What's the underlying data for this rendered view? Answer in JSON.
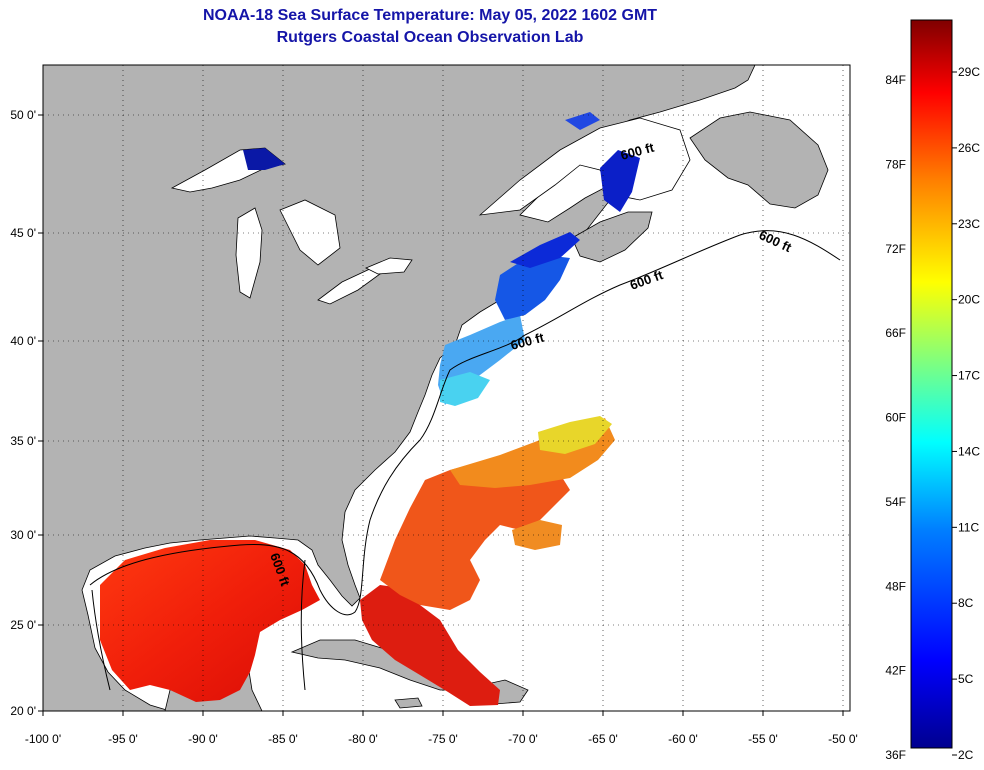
{
  "header": {
    "title": "NOAA-18 Sea Surface Temperature:  May 05, 2022 1602 GMT",
    "subtitle": "Rutgers Coastal Ocean Observation Lab"
  },
  "map": {
    "lon_ticks": [
      "-100 0'",
      "-95 0'",
      "-90 0'",
      "-85 0'",
      "-80 0'",
      "-75 0'",
      "-70 0'",
      "-65 0'",
      "-60 0'",
      "-55 0'",
      "-50 0'"
    ],
    "lat_ticks": [
      "50 0'",
      "45 0'",
      "40 0'",
      "35 0'",
      "30 0'",
      "25 0'",
      "20 0'"
    ],
    "contour_label": "600 ft",
    "colors": {
      "land": "#b3b3b3",
      "water_no_data": "#ffffff",
      "frame": "#000000"
    }
  },
  "colorbar": {
    "fahrenheit_labels": [
      "84F",
      "78F",
      "72F",
      "66F",
      "60F",
      "54F",
      "48F",
      "42F",
      "36F"
    ],
    "celsius_labels": [
      "29C",
      "26C",
      "23C",
      "20C",
      "17C",
      "14C",
      "11C",
      "8C",
      "5C",
      "2C"
    ],
    "gradient_stops": [
      "#00008f",
      "#0000ff",
      "#007fff",
      "#00ffff",
      "#7fff7f",
      "#ffff00",
      "#ff7f00",
      "#ff0000",
      "#7f0000"
    ]
  }
}
